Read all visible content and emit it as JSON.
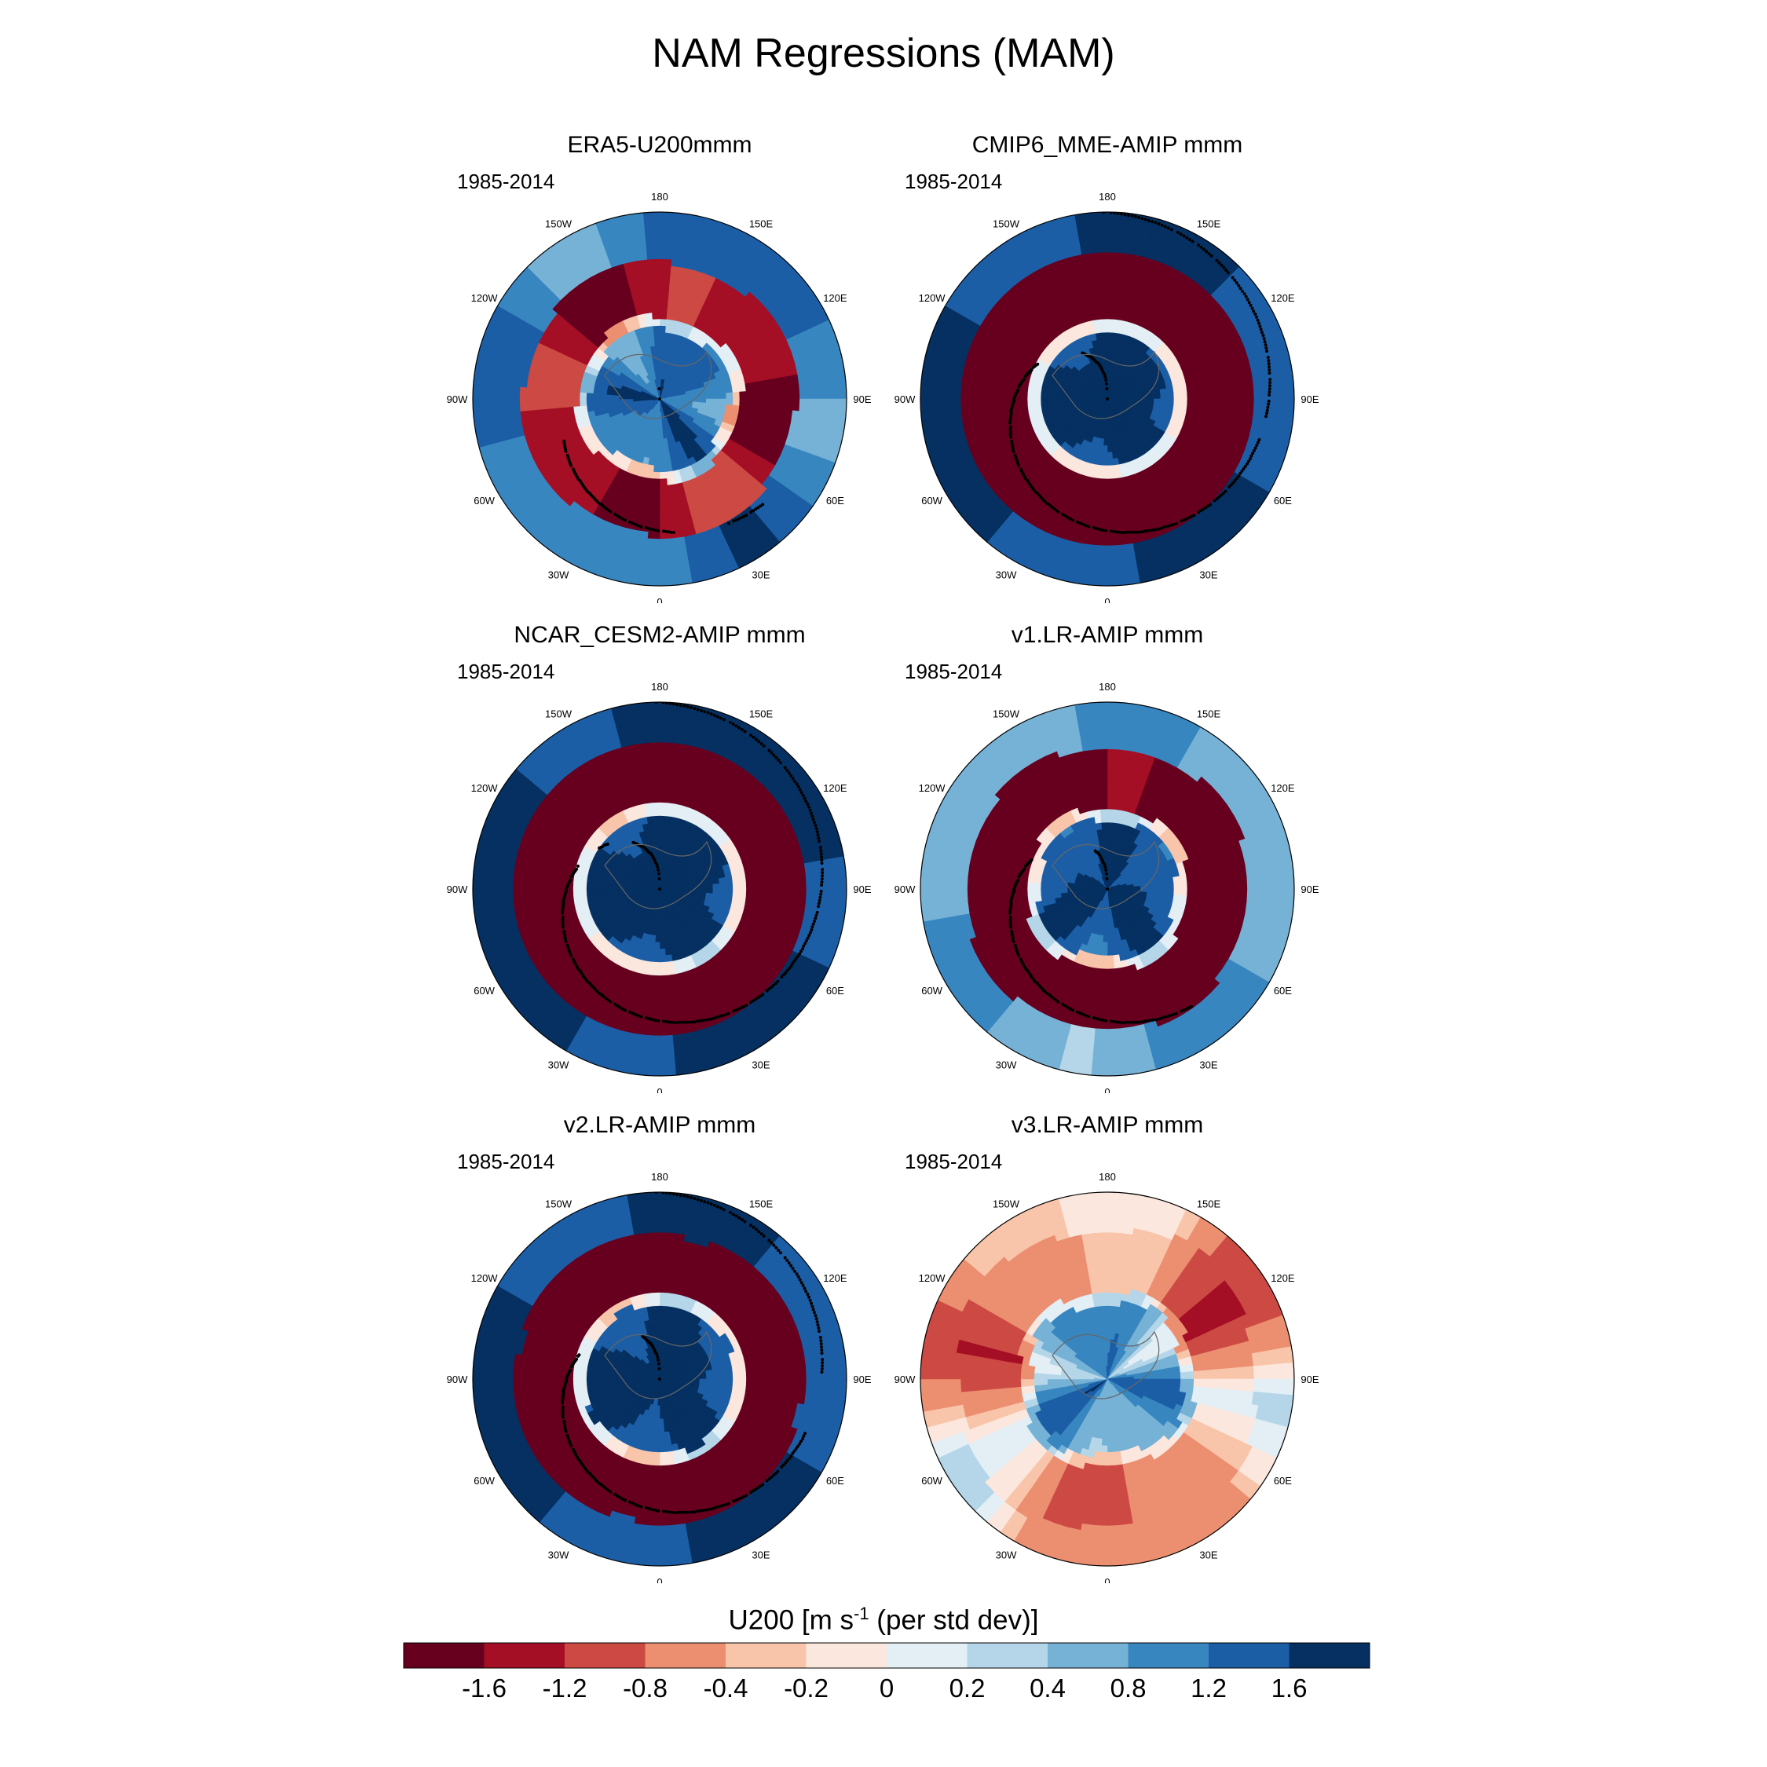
{
  "figure": {
    "title": "NAM Regressions (MAM)",
    "period_label": "1985-2014",
    "longitude_labels": [
      "180",
      "150E",
      "120E",
      "90E",
      "60E",
      "30E",
      "0",
      "30W",
      "60W",
      "90W",
      "120W",
      "150W"
    ]
  },
  "panels": [
    {
      "title": "ERA5-U200mmm",
      "period": "1985-2014",
      "pattern": "era5"
    },
    {
      "title": "CMIP6_MME-AMIP  mmm",
      "period": "1985-2014",
      "pattern": "cmip6"
    },
    {
      "title": "NCAR_CESM2-AMIP  mmm",
      "period": "1985-2014",
      "pattern": "cesm2"
    },
    {
      "title": "v1.LR-AMIP  mmm",
      "period": "1985-2014",
      "pattern": "v1"
    },
    {
      "title": "v2.LR-AMIP  mmm",
      "period": "1985-2014",
      "pattern": "v2"
    },
    {
      "title": "v3.LR-AMIP  mmm",
      "period": "1985-2014",
      "pattern": "v3"
    }
  ],
  "colorbar": {
    "title_prefix": "U200 [m s",
    "title_sup": "-1",
    "title_suffix": " (per std dev)]",
    "labels": [
      "-1.6",
      "-1.2",
      "-0.8",
      "-0.4",
      "-0.2",
      "0",
      "0.2",
      "0.4",
      "0.8",
      "1.2",
      "1.6"
    ],
    "colors": [
      "#67001f",
      "#a50f25",
      "#cd4a44",
      "#eb8f70",
      "#f8c5ab",
      "#fbe7dd",
      "#e3eef5",
      "#b4d6e8",
      "#76b1d6",
      "#3886c0",
      "#1c5ea6",
      "#053061"
    ]
  }
}
